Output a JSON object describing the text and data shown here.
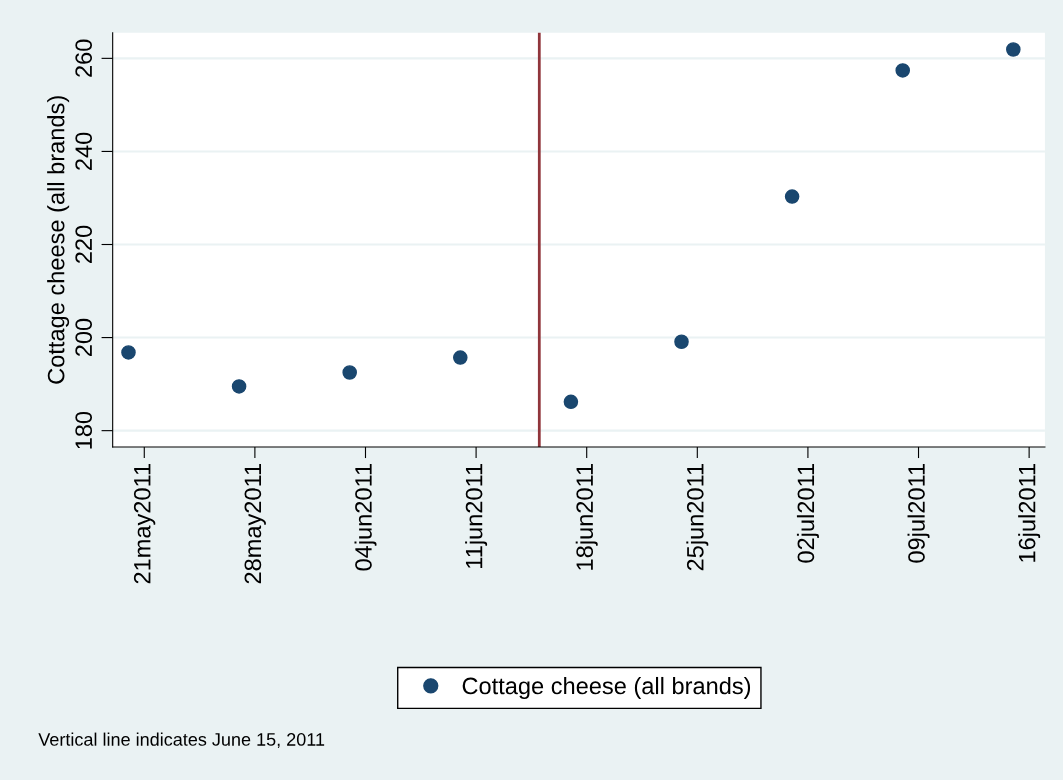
{
  "chart_data": {
    "type": "scatter",
    "ylabel": "Cottage cheese (all brands)",
    "x": [
      "2011-05-20",
      "2011-05-27",
      "2011-06-03",
      "2011-06-10",
      "2011-06-17",
      "2011-06-24",
      "2011-07-01",
      "2011-07-08",
      "2011-07-15"
    ],
    "series": [
      {
        "name": "Cottage cheese (all brands)",
        "color": "#1a476f",
        "values": [
          196.8,
          189.5,
          192.5,
          195.7,
          186.2,
          199.1,
          230.3,
          257.4,
          261.9
        ]
      }
    ],
    "xlim": [
      "2011-05-19",
      "2011-07-17"
    ],
    "xticks": [
      {
        "value": "2011-05-21",
        "label": "21may2011"
      },
      {
        "value": "2011-05-28",
        "label": "28may2011"
      },
      {
        "value": "2011-06-04",
        "label": "04jun2011"
      },
      {
        "value": "2011-06-11",
        "label": "11jun2011"
      },
      {
        "value": "2011-06-18",
        "label": "18jun2011"
      },
      {
        "value": "2011-06-25",
        "label": "25jun2011"
      },
      {
        "value": "2011-07-02",
        "label": "02jul2011"
      },
      {
        "value": "2011-07-09",
        "label": "09jul2011"
      },
      {
        "value": "2011-07-16",
        "label": "16jul2011"
      }
    ],
    "ylim": [
      176.5,
      265.5
    ],
    "yticks": [
      180,
      200,
      220,
      240,
      260
    ],
    "ref_lines": [
      {
        "axis": "x",
        "value": "2011-06-15",
        "color": "#90353b"
      }
    ],
    "grid": "y",
    "legend": "bottom",
    "marker": "circle",
    "annotations": [
      "Vertical line indicates June 15, 2011"
    ]
  }
}
